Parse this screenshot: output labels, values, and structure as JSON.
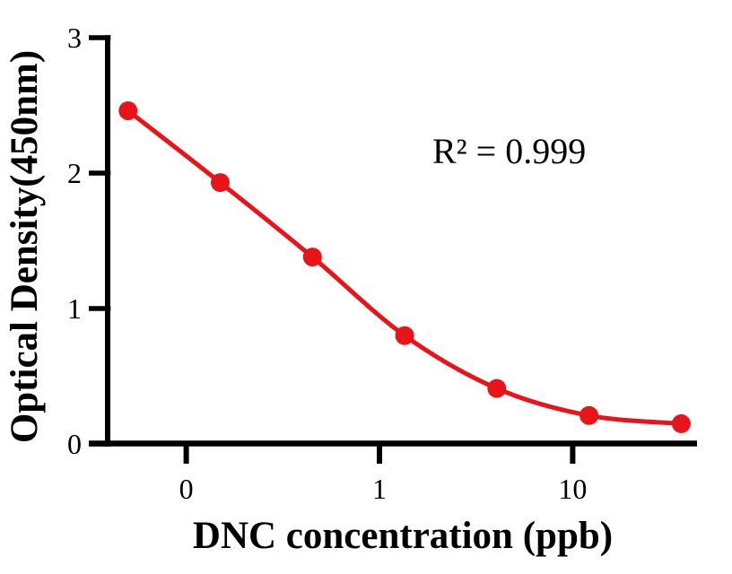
{
  "figure": {
    "background": "#ffffff",
    "axis_color": "#000000",
    "text_color": "#000000"
  },
  "chart_data": {
    "type": "line",
    "title": "",
    "xlabel": "DNC concentration (ppb)",
    "ylabel": "Optical Density(450nm)",
    "annotation": "R² = 0.999",
    "x_scale": "log10",
    "x_axis_range_log10": [
      -1.5,
      1.64
    ],
    "ylim": [
      0,
      3
    ],
    "grid": false,
    "legend": "none",
    "x_ticks": [
      {
        "value": 0.1,
        "label": "0"
      },
      {
        "value": 1,
        "label": "1"
      },
      {
        "value": 10,
        "label": "10"
      }
    ],
    "y_ticks": [
      {
        "value": 0,
        "label": "0"
      },
      {
        "value": 1,
        "label": "1"
      },
      {
        "value": 2,
        "label": "2"
      },
      {
        "value": 3,
        "label": "3"
      }
    ],
    "series": [
      {
        "color": "#e9141a",
        "marker": "circle",
        "x": [
          0.05,
          0.15,
          0.45,
          1.35,
          4.05,
          12.15,
          36.45
        ],
        "y": [
          2.46,
          1.93,
          1.38,
          0.8,
          0.41,
          0.21,
          0.15
        ]
      }
    ]
  }
}
